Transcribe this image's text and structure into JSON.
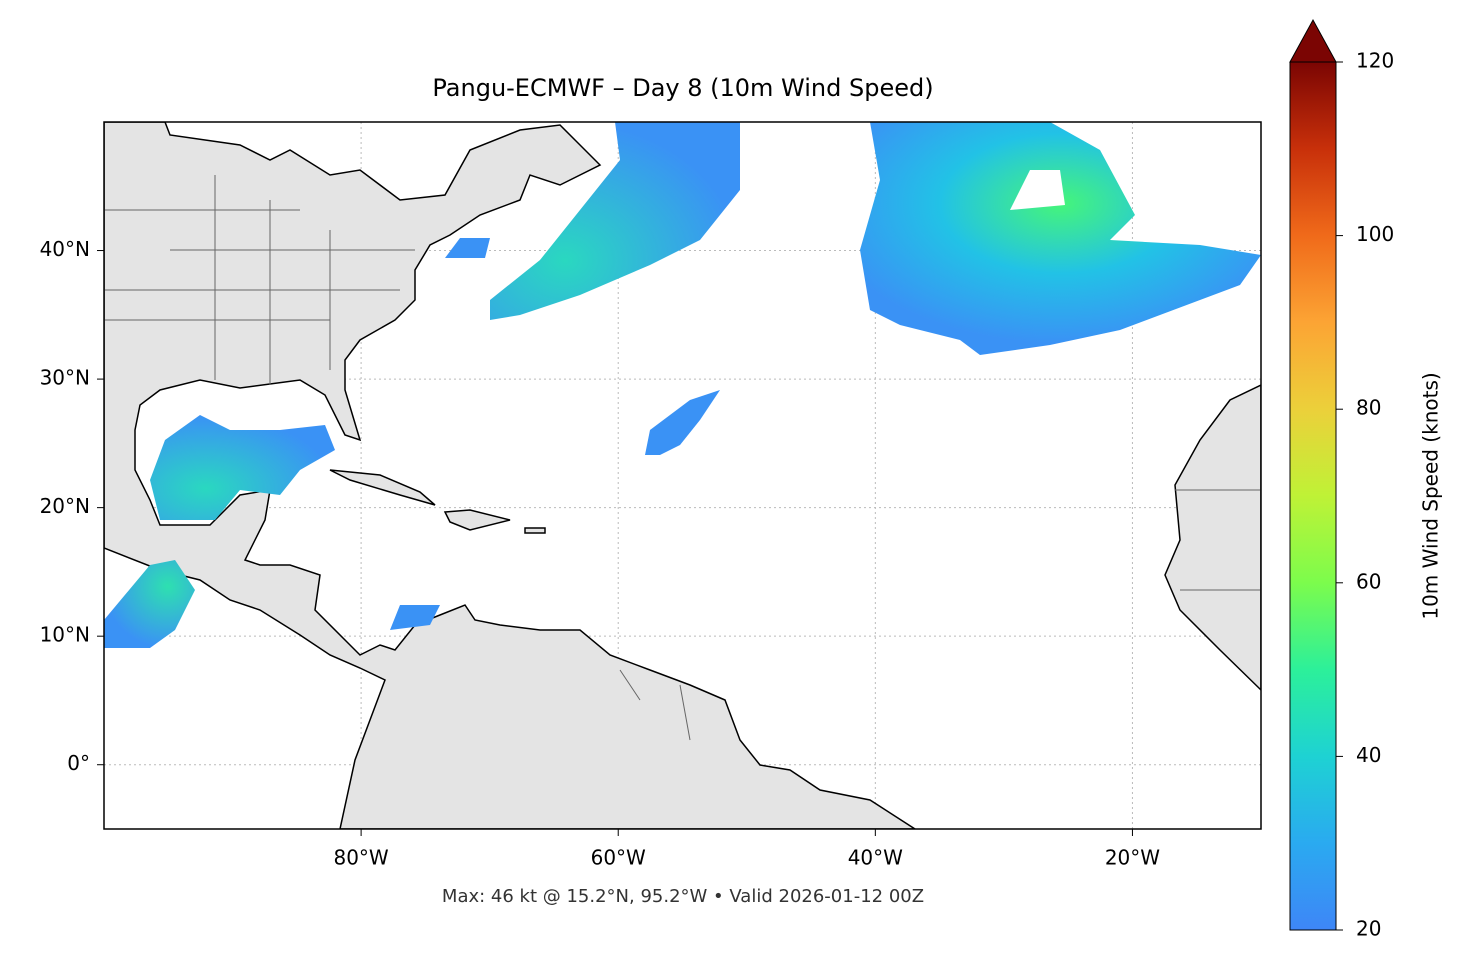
{
  "map": {
    "title": "Pangu-ECMWF – Day 8 (10m Wind Speed)",
    "xlim": [
      -100,
      -10
    ],
    "ylim": [
      -5,
      50
    ],
    "xticks": [
      {
        "value": -80,
        "label": "80°W"
      },
      {
        "value": -60,
        "label": "60°W"
      },
      {
        "value": -40,
        "label": "40°W"
      },
      {
        "value": -20,
        "label": "20°W"
      }
    ],
    "yticks": [
      {
        "value": 0,
        "label": "0°"
      },
      {
        "value": 10,
        "label": "10°N"
      },
      {
        "value": 20,
        "label": "20°N"
      },
      {
        "value": 30,
        "label": "30°N"
      },
      {
        "value": 40,
        "label": "40°N"
      }
    ],
    "grid": true,
    "colorbar": {
      "label": "10m Wind Speed (knots)",
      "lim": [
        20,
        120
      ],
      "ticks": [
        20,
        40,
        60,
        80,
        100,
        120
      ]
    },
    "footer": "Max: 46 kt @ 15.2°N, 95.2°W • Valid 2026-01-12 00Z"
  }
}
